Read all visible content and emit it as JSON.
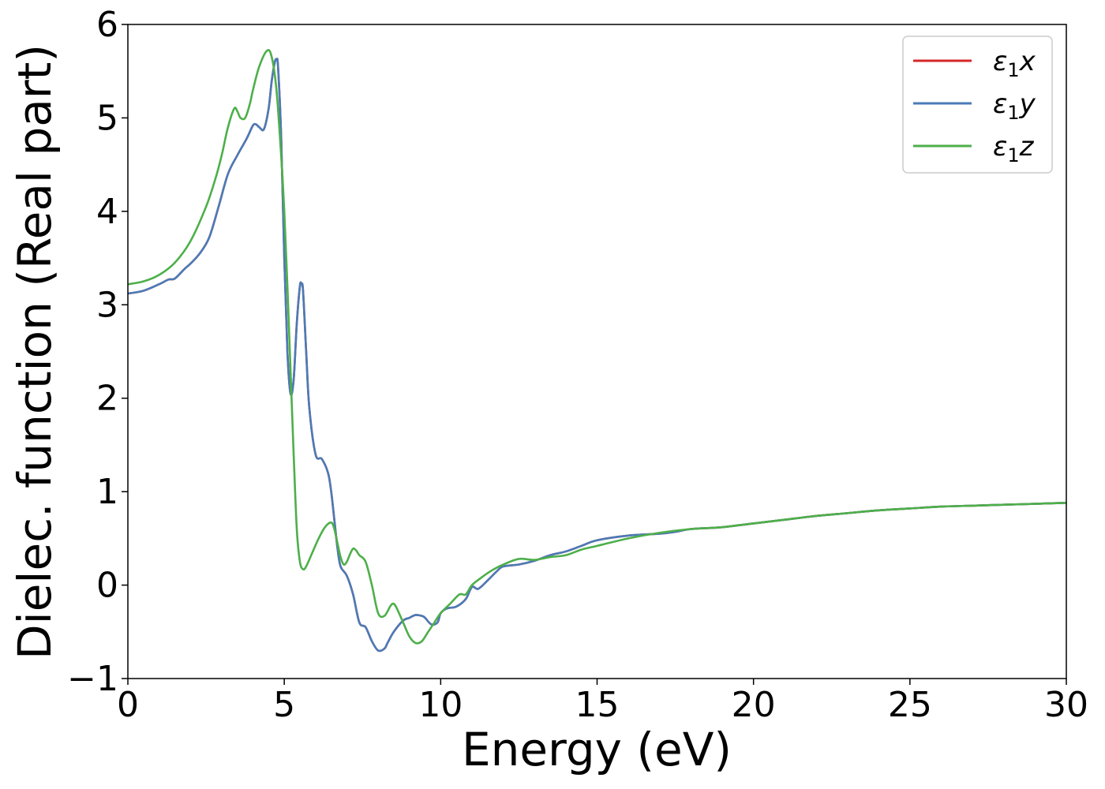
{
  "chart_data": {
    "type": "line",
    "xlabel": "Energy (eV)",
    "ylabel": "Dielec. function (Real part)",
    "xlim": [
      0,
      30
    ],
    "ylim": [
      -1,
      6
    ],
    "xticks": [
      0,
      5,
      10,
      15,
      20,
      25,
      30
    ],
    "yticks": [
      -1,
      0,
      1,
      2,
      3,
      4,
      5,
      6
    ],
    "xtick_labels": [
      "0",
      "5",
      "10",
      "15",
      "20",
      "25",
      "30"
    ],
    "ytick_labels": [
      "−1",
      "0",
      "1",
      "2",
      "3",
      "4",
      "5",
      "6"
    ],
    "grid": false,
    "legend_position": "top-right",
    "series": [
      {
        "name": "ε",
        "sub": "1",
        "suffix": "x",
        "color": "#d62728",
        "x": [
          0,
          0.5,
          1,
          1.3,
          1.5,
          1.8,
          2.0,
          2.3,
          2.6,
          2.9,
          3.2,
          3.5,
          3.8,
          4.0,
          4.1,
          4.2,
          4.35,
          4.5,
          4.6,
          4.7,
          4.75,
          4.8,
          4.9,
          5.0,
          5.1,
          5.2,
          5.3,
          5.4,
          5.5,
          5.55,
          5.6,
          5.7,
          5.8,
          6.0,
          6.2,
          6.4,
          6.5,
          6.6,
          6.7,
          6.8,
          7.0,
          7.2,
          7.4,
          7.6,
          7.8,
          8.0,
          8.2,
          8.3,
          8.5,
          8.8,
          9.0,
          9.2,
          9.4,
          9.5,
          9.7,
          9.9,
          10.0,
          10.2,
          10.5,
          10.8,
          11.0,
          11.2,
          11.5,
          11.8,
          12.0,
          12.5,
          13.0,
          13.5,
          14.0,
          14.5,
          15.0,
          16.0,
          17.0,
          17.5,
          18.0,
          19.0,
          20.0,
          21.0,
          22.0,
          23.0,
          24.0,
          25.0,
          26.0,
          27.0,
          28.0,
          29.0,
          30.0
        ],
        "y": [
          3.12,
          3.15,
          3.22,
          3.27,
          3.28,
          3.38,
          3.44,
          3.55,
          3.72,
          4.05,
          4.4,
          4.6,
          4.78,
          4.92,
          4.93,
          4.9,
          4.88,
          5.1,
          5.4,
          5.6,
          5.62,
          5.55,
          4.8,
          3.5,
          2.5,
          2.05,
          2.2,
          2.8,
          3.2,
          3.22,
          3.15,
          2.5,
          1.9,
          1.4,
          1.35,
          1.2,
          1.0,
          0.7,
          0.4,
          0.2,
          0.1,
          -0.1,
          -0.4,
          -0.45,
          -0.6,
          -0.7,
          -0.68,
          -0.62,
          -0.5,
          -0.38,
          -0.35,
          -0.32,
          -0.33,
          -0.35,
          -0.42,
          -0.4,
          -0.3,
          -0.25,
          -0.23,
          -0.15,
          -0.02,
          -0.04,
          0.05,
          0.15,
          0.2,
          0.22,
          0.26,
          0.32,
          0.36,
          0.42,
          0.48,
          0.53,
          0.55,
          0.57,
          0.6,
          0.62,
          0.66,
          0.7,
          0.74,
          0.77,
          0.8,
          0.82,
          0.84,
          0.85,
          0.86,
          0.87,
          0.88
        ]
      },
      {
        "name": "ε",
        "sub": "1",
        "suffix": "y",
        "color": "#4a7bb7",
        "x": [
          0,
          0.5,
          1,
          1.3,
          1.5,
          1.8,
          2.0,
          2.3,
          2.6,
          2.9,
          3.2,
          3.5,
          3.8,
          4.0,
          4.1,
          4.2,
          4.35,
          4.5,
          4.6,
          4.7,
          4.75,
          4.8,
          4.9,
          5.0,
          5.1,
          5.2,
          5.3,
          5.4,
          5.5,
          5.55,
          5.6,
          5.7,
          5.8,
          6.0,
          6.2,
          6.4,
          6.5,
          6.6,
          6.7,
          6.8,
          7.0,
          7.2,
          7.4,
          7.6,
          7.8,
          8.0,
          8.2,
          8.3,
          8.5,
          8.8,
          9.0,
          9.2,
          9.4,
          9.5,
          9.7,
          9.9,
          10.0,
          10.2,
          10.5,
          10.8,
          11.0,
          11.2,
          11.5,
          11.8,
          12.0,
          12.5,
          13.0,
          13.5,
          14.0,
          14.5,
          15.0,
          16.0,
          17.0,
          17.5,
          18.0,
          19.0,
          20.0,
          21.0,
          22.0,
          23.0,
          24.0,
          25.0,
          26.0,
          27.0,
          28.0,
          29.0,
          30.0
        ],
        "y": [
          3.12,
          3.15,
          3.22,
          3.27,
          3.28,
          3.38,
          3.44,
          3.55,
          3.72,
          4.05,
          4.4,
          4.6,
          4.78,
          4.92,
          4.93,
          4.9,
          4.88,
          5.1,
          5.4,
          5.6,
          5.62,
          5.55,
          4.8,
          3.5,
          2.5,
          2.05,
          2.2,
          2.8,
          3.2,
          3.22,
          3.15,
          2.5,
          1.9,
          1.4,
          1.35,
          1.2,
          1.0,
          0.7,
          0.4,
          0.2,
          0.1,
          -0.1,
          -0.4,
          -0.45,
          -0.6,
          -0.7,
          -0.68,
          -0.62,
          -0.5,
          -0.38,
          -0.35,
          -0.32,
          -0.33,
          -0.35,
          -0.42,
          -0.4,
          -0.3,
          -0.25,
          -0.23,
          -0.15,
          -0.02,
          -0.04,
          0.05,
          0.15,
          0.2,
          0.22,
          0.26,
          0.32,
          0.36,
          0.42,
          0.48,
          0.53,
          0.55,
          0.57,
          0.6,
          0.62,
          0.66,
          0.7,
          0.74,
          0.77,
          0.8,
          0.82,
          0.84,
          0.85,
          0.86,
          0.87,
          0.88
        ]
      },
      {
        "name": "ε",
        "sub": "1",
        "suffix": "z",
        "color": "#4daf4a",
        "x": [
          0,
          0.5,
          1,
          1.5,
          2.0,
          2.5,
          2.8,
          3.0,
          3.2,
          3.4,
          3.5,
          3.6,
          3.75,
          3.9,
          4.0,
          4.2,
          4.45,
          4.6,
          4.75,
          4.9,
          5.0,
          5.1,
          5.2,
          5.3,
          5.4,
          5.5,
          5.6,
          5.7,
          5.9,
          6.1,
          6.3,
          6.5,
          6.6,
          6.7,
          6.8,
          6.9,
          7.0,
          7.1,
          7.2,
          7.3,
          7.4,
          7.6,
          7.8,
          8.0,
          8.2,
          8.4,
          8.5,
          8.6,
          8.8,
          9.0,
          9.2,
          9.4,
          9.6,
          9.8,
          10.0,
          10.3,
          10.6,
          10.8,
          11.0,
          11.3,
          11.6,
          12.0,
          12.5,
          13.0,
          13.5,
          14.0,
          14.5,
          15.0,
          16.0,
          17.0,
          18.0,
          19.0,
          20.0,
          21.0,
          22.0,
          23.0,
          24.0,
          25.0,
          26.0,
          27.0,
          28.0,
          29.0,
          30.0
        ],
        "y": [
          3.22,
          3.25,
          3.32,
          3.45,
          3.68,
          4.05,
          4.35,
          4.6,
          4.9,
          5.1,
          5.07,
          5.0,
          5.0,
          5.15,
          5.3,
          5.55,
          5.72,
          5.65,
          5.3,
          4.6,
          4.0,
          3.2,
          2.3,
          1.4,
          0.6,
          0.25,
          0.17,
          0.2,
          0.35,
          0.5,
          0.62,
          0.67,
          0.6,
          0.45,
          0.3,
          0.22,
          0.25,
          0.33,
          0.39,
          0.37,
          0.32,
          0.25,
          0.0,
          -0.3,
          -0.33,
          -0.22,
          -0.2,
          -0.25,
          -0.4,
          -0.55,
          -0.62,
          -0.6,
          -0.5,
          -0.4,
          -0.3,
          -0.2,
          -0.1,
          -0.1,
          0.0,
          0.08,
          0.15,
          0.22,
          0.28,
          0.27,
          0.3,
          0.32,
          0.38,
          0.42,
          0.5,
          0.56,
          0.6,
          0.62,
          0.66,
          0.7,
          0.74,
          0.77,
          0.8,
          0.82,
          0.84,
          0.85,
          0.86,
          0.87,
          0.88
        ]
      }
    ]
  }
}
